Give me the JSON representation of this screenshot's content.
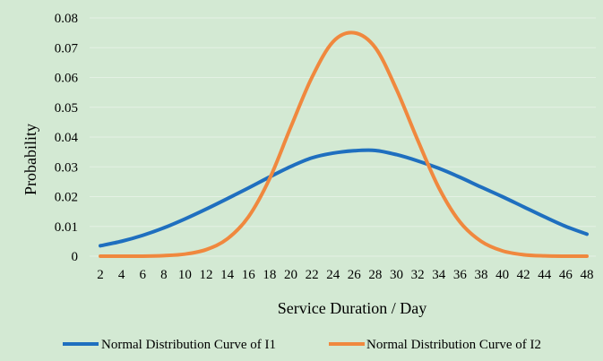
{
  "chart_data": {
    "type": "line",
    "title": "",
    "xlabel": "Service Duration / Day",
    "ylabel": "Probability",
    "ylim": [
      0,
      0.08
    ],
    "yticks": [
      "0",
      "0.01",
      "0.02",
      "0.03",
      "0.04",
      "0.05",
      "0.06",
      "0.07",
      "0.08"
    ],
    "x": [
      2,
      4,
      6,
      8,
      10,
      12,
      14,
      16,
      18,
      20,
      22,
      24,
      26,
      28,
      30,
      32,
      34,
      36,
      38,
      40,
      42,
      44,
      46,
      48
    ],
    "grid": true,
    "legend_position": "bottom",
    "background_color": "#d3e9d3",
    "series": [
      {
        "name": "Normal Distribution Curve of I1",
        "color": "#1f6fbf",
        "values": [
          0.0035,
          0.005,
          0.007,
          0.0095,
          0.0125,
          0.0158,
          0.0193,
          0.0229,
          0.0266,
          0.0301,
          0.033,
          0.0346,
          0.0354,
          0.0355,
          0.0341,
          0.032,
          0.0295,
          0.0265,
          0.0232,
          0.02,
          0.0166,
          0.0132,
          0.01,
          0.0074
        ]
      },
      {
        "name": "Normal Distribution Curve of I2",
        "color": "#f0883e",
        "values": [
          0.0,
          0.0,
          0.0,
          0.0002,
          0.0007,
          0.0022,
          0.0058,
          0.0132,
          0.026,
          0.0433,
          0.06,
          0.072,
          0.075,
          0.07,
          0.056,
          0.039,
          0.023,
          0.0115,
          0.005,
          0.0018,
          0.0005,
          0.0001,
          0.0,
          0.0
        ]
      }
    ]
  }
}
